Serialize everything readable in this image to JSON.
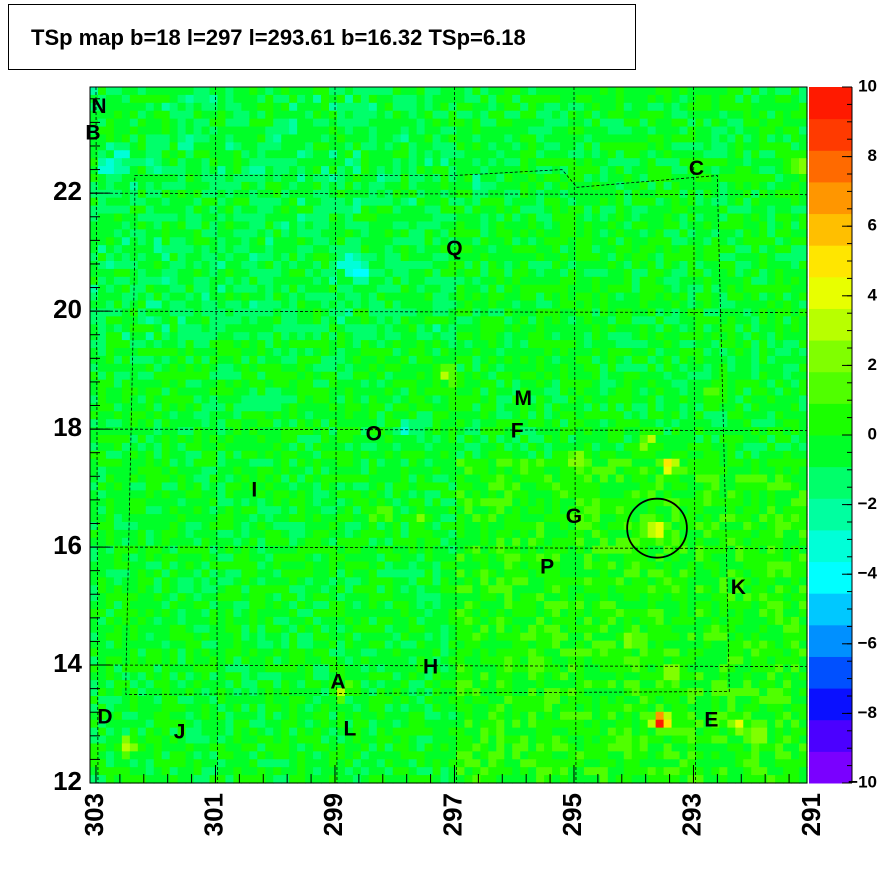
{
  "title": "TSp map b=18 l=297 l=293.61 b=16.32 TSp=6.18",
  "chart_data": {
    "type": "heatmap",
    "title": "TSp map b=18 l=297 l=293.61 b=16.32 TSp=6.18",
    "xlabel": "",
    "ylabel": "",
    "x_axis": {
      "range": [
        303.1,
        291.1
      ],
      "reversed": true,
      "ticks": [
        "303",
        "301",
        "299",
        "297",
        "295",
        "293",
        "291"
      ]
    },
    "y_axis": {
      "range": [
        12.0,
        23.8
      ],
      "ticks": [
        "12",
        "14",
        "16",
        "18",
        "20",
        "22"
      ]
    },
    "colorbar": {
      "range": [
        -10,
        10
      ],
      "ticks": [
        "10",
        "8",
        "6",
        "4",
        "2",
        "0",
        "−2",
        "−4",
        "−6",
        "−8",
        "−10"
      ],
      "colors": [
        "#7a00ff",
        "#4b00ff",
        "#0a10ff",
        "#0050ff",
        "#0090ff",
        "#00c8ff",
        "#00ffff",
        "#00ffd8",
        "#00ffa0",
        "#00ff6a",
        "#00ff28",
        "#1aff00",
        "#50ff00",
        "#80ff00",
        "#b8ff00",
        "#e8ff00",
        "#ffe600",
        "#ffbf00",
        "#ff9600",
        "#ff6a00",
        "#ff3a00",
        "#ff1a00"
      ]
    },
    "background_value": -0.3,
    "hotspots": [
      {
        "l": 293.55,
        "b": 13.05,
        "value": 9.5
      },
      {
        "l": 293.4,
        "b": 17.4,
        "value": 5.5
      },
      {
        "l": 293.6,
        "b": 16.3,
        "value": 6.2
      },
      {
        "l": 293.75,
        "b": 17.8,
        "value": 3.5
      },
      {
        "l": 294.95,
        "b": 17.5,
        "value": 3.0
      },
      {
        "l": 292.25,
        "b": 13.0,
        "value": 3.5
      },
      {
        "l": 291.95,
        "b": 12.8,
        "value": 2.5
      },
      {
        "l": 297.1,
        "b": 18.9,
        "value": 3.0
      },
      {
        "l": 302.45,
        "b": 12.65,
        "value": 4.0
      },
      {
        "l": 298.9,
        "b": 13.55,
        "value": 3.0
      },
      {
        "l": 297.6,
        "b": 16.55,
        "value": 2.5
      },
      {
        "l": 298.25,
        "b": 16.55,
        "value": 2.5
      },
      {
        "l": 292.75,
        "b": 18.6,
        "value": 2.5
      },
      {
        "l": 291.2,
        "b": 22.5,
        "value": 3.0
      },
      {
        "l": 294.0,
        "b": 14.4,
        "value": 2.0
      },
      {
        "l": 293.35,
        "b": 13.85,
        "value": 2.5
      }
    ],
    "coldspots": [
      {
        "l": 298.6,
        "b": 20.7,
        "value": -5.0
      },
      {
        "l": 298.8,
        "b": 20.85,
        "value": -3.0
      },
      {
        "l": 302.55,
        "b": 22.7,
        "value": -3.0
      },
      {
        "l": 301.5,
        "b": 22.9,
        "value": -2.5
      },
      {
        "l": 297.8,
        "b": 18.0,
        "value": -3.0
      },
      {
        "l": 296.6,
        "b": 22.2,
        "value": -2.0
      },
      {
        "l": 300.3,
        "b": 22.3,
        "value": -2.0
      },
      {
        "l": 302.8,
        "b": 22.4,
        "value": -3.5
      },
      {
        "l": 300.0,
        "b": 18.5,
        "value": -2.0
      },
      {
        "l": 297.9,
        "b": 15.5,
        "value": -2.0
      }
    ],
    "sources": [
      {
        "label": "N",
        "l": 302.95,
        "b": 23.45
      },
      {
        "label": "B",
        "l": 303.05,
        "b": 23.0
      },
      {
        "label": "C",
        "l": 292.95,
        "b": 22.4
      },
      {
        "label": "Q",
        "l": 297.0,
        "b": 21.05
      },
      {
        "label": "M",
        "l": 295.85,
        "b": 18.5
      },
      {
        "label": "F",
        "l": 295.95,
        "b": 17.95
      },
      {
        "label": "O",
        "l": 298.35,
        "b": 17.9
      },
      {
        "label": "I",
        "l": 300.35,
        "b": 16.95
      },
      {
        "label": "G",
        "l": 295.0,
        "b": 16.5
      },
      {
        "label": "P",
        "l": 295.45,
        "b": 15.65
      },
      {
        "label": "K",
        "l": 292.25,
        "b": 15.3
      },
      {
        "label": "H",
        "l": 297.4,
        "b": 13.95
      },
      {
        "label": "A",
        "l": 298.95,
        "b": 13.7
      },
      {
        "label": "E",
        "l": 292.7,
        "b": 13.05
      },
      {
        "label": "D",
        "l": 302.85,
        "b": 13.1
      },
      {
        "label": "J",
        "l": 301.6,
        "b": 12.85
      },
      {
        "label": "L",
        "l": 298.75,
        "b": 12.9
      }
    ],
    "circle": {
      "l": 293.61,
      "b": 16.32,
      "radius_deg": 0.5
    },
    "grid_lines": {
      "l": [
        303,
        301,
        299,
        297,
        295,
        293,
        291
      ],
      "b": [
        14,
        16,
        18,
        20,
        22
      ]
    }
  }
}
